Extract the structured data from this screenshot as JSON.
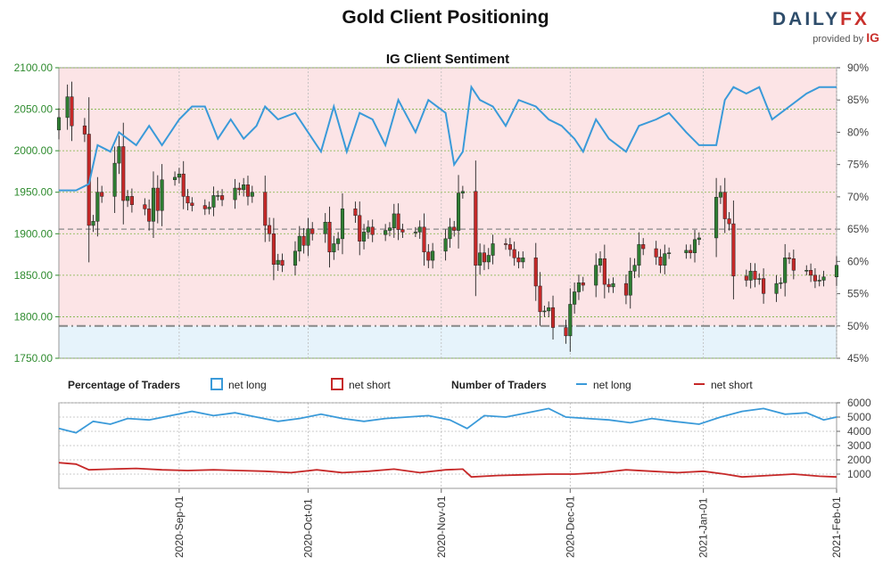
{
  "header": {
    "title": "Gold Client Positioning",
    "logo_text_a": "DAILY",
    "logo_text_b": "FX",
    "logo_sub": "provided by",
    "logo_brand": "IG"
  },
  "colors": {
    "net_long": "#3a9ad9",
    "net_short": "#c62828",
    "bull_candle": "#2e7d32",
    "bear_candle": "#c62828",
    "long_zone": "#e6f3fb",
    "short_zone": "#fce4e6",
    "price_axis": "#2e8b2e",
    "grid": "#7cb342"
  },
  "chart_data": [
    {
      "type": "candlestick",
      "title": "IG Client Sentiment",
      "y_left": {
        "label": "",
        "range": [
          1750,
          2100
        ],
        "ticks": [
          "1750.00",
          "1800.00",
          "1850.00",
          "1900.00",
          "1950.00",
          "2000.00",
          "2050.00",
          "2100.00"
        ]
      },
      "y_right": {
        "label": "",
        "range": [
          45,
          90
        ],
        "ticks": [
          "45%",
          "50%",
          "55%",
          "60%",
          "65%",
          "70%",
          "75%",
          "80%",
          "85%",
          "90%"
        ]
      },
      "x_range": [
        "2020-08-04",
        "2021-02-01"
      ],
      "x_ticks": [
        "2020-Sep-01",
        "2020-Oct-01",
        "2020-Nov-01",
        "2020-Dec-01",
        "2021-Jan-01",
        "2021-Feb-01"
      ],
      "reference_lines_pct": [
        50,
        65
      ],
      "close_price": [
        [
          "2020-08-04",
          2040
        ],
        [
          "2020-08-06",
          2065
        ],
        [
          "2020-08-07",
          2030
        ],
        [
          "2020-08-10",
          2020
        ],
        [
          "2020-08-11",
          1910
        ],
        [
          "2020-08-12",
          1915
        ],
        [
          "2020-08-13",
          1950
        ],
        [
          "2020-08-14",
          1945
        ],
        [
          "2020-08-17",
          1985
        ],
        [
          "2020-08-18",
          2005
        ],
        [
          "2020-08-19",
          1940
        ],
        [
          "2020-08-20",
          1945
        ],
        [
          "2020-08-21",
          1935
        ],
        [
          "2020-08-24",
          1930
        ],
        [
          "2020-08-25",
          1915
        ],
        [
          "2020-08-26",
          1955
        ],
        [
          "2020-08-27",
          1928
        ],
        [
          "2020-08-28",
          1965
        ],
        [
          "2020-08-31",
          1968
        ],
        [
          "2020-09-01",
          1972
        ],
        [
          "2020-09-02",
          1945
        ],
        [
          "2020-09-03",
          1937
        ],
        [
          "2020-09-04",
          1934
        ],
        [
          "2020-09-07",
          1930
        ],
        [
          "2020-09-08",
          1932
        ],
        [
          "2020-09-09",
          1946
        ],
        [
          "2020-09-10",
          1946
        ],
        [
          "2020-09-11",
          1941
        ],
        [
          "2020-09-14",
          1955
        ],
        [
          "2020-09-15",
          1953
        ],
        [
          "2020-09-16",
          1959
        ],
        [
          "2020-09-17",
          1945
        ],
        [
          "2020-09-18",
          1950
        ],
        [
          "2020-09-21",
          1910
        ],
        [
          "2020-09-22",
          1900
        ],
        [
          "2020-09-23",
          1863
        ],
        [
          "2020-09-24",
          1868
        ],
        [
          "2020-09-25",
          1862
        ],
        [
          "2020-09-28",
          1879
        ],
        [
          "2020-09-29",
          1897
        ],
        [
          "2020-09-30",
          1886
        ],
        [
          "2020-10-01",
          1906
        ],
        [
          "2020-10-02",
          1900
        ],
        [
          "2020-10-05",
          1914
        ],
        [
          "2020-10-06",
          1878
        ],
        [
          "2020-10-07",
          1888
        ],
        [
          "2020-10-08",
          1894
        ],
        [
          "2020-10-09",
          1930
        ],
        [
          "2020-10-12",
          1922
        ],
        [
          "2020-10-13",
          1891
        ],
        [
          "2020-10-14",
          1902
        ],
        [
          "2020-10-15",
          1908
        ],
        [
          "2020-10-16",
          1899
        ],
        [
          "2020-10-19",
          1904
        ],
        [
          "2020-10-20",
          1907
        ],
        [
          "2020-10-21",
          1924
        ],
        [
          "2020-10-22",
          1905
        ],
        [
          "2020-10-23",
          1902
        ],
        [
          "2020-10-26",
          1902
        ],
        [
          "2020-10-27",
          1908
        ],
        [
          "2020-10-28",
          1878
        ],
        [
          "2020-10-29",
          1868
        ],
        [
          "2020-10-30",
          1879
        ],
        [
          "2020-11-02",
          1894
        ],
        [
          "2020-11-03",
          1908
        ],
        [
          "2020-11-04",
          1904
        ],
        [
          "2020-11-05",
          1949
        ],
        [
          "2020-11-06",
          1951
        ],
        [
          "2020-11-09",
          1862
        ],
        [
          "2020-11-10",
          1877
        ],
        [
          "2020-11-11",
          1866
        ],
        [
          "2020-11-12",
          1874
        ],
        [
          "2020-11-13",
          1888
        ],
        [
          "2020-11-16",
          1887
        ],
        [
          "2020-11-17",
          1881
        ],
        [
          "2020-11-18",
          1871
        ],
        [
          "2020-11-19",
          1866
        ],
        [
          "2020-11-20",
          1871
        ],
        [
          "2020-11-23",
          1837
        ],
        [
          "2020-11-24",
          1806
        ],
        [
          "2020-11-25",
          1807
        ],
        [
          "2020-11-26",
          1811
        ],
        [
          "2020-11-27",
          1787
        ],
        [
          "2020-11-30",
          1777
        ],
        [
          "2020-12-01",
          1815
        ],
        [
          "2020-12-02",
          1830
        ],
        [
          "2020-12-03",
          1841
        ],
        [
          "2020-12-04",
          1838
        ],
        [
          "2020-12-07",
          1862
        ],
        [
          "2020-12-08",
          1870
        ],
        [
          "2020-12-09",
          1839
        ],
        [
          "2020-12-10",
          1836
        ],
        [
          "2020-12-11",
          1840
        ],
        [
          "2020-12-14",
          1826
        ],
        [
          "2020-12-15",
          1855
        ],
        [
          "2020-12-16",
          1862
        ],
        [
          "2020-12-17",
          1887
        ],
        [
          "2020-12-18",
          1882
        ],
        [
          "2020-12-21",
          1872
        ],
        [
          "2020-12-22",
          1862
        ],
        [
          "2020-12-23",
          1876
        ],
        [
          "2020-12-24",
          1877
        ],
        [
          "2020-12-28",
          1880
        ],
        [
          "2020-12-29",
          1877
        ],
        [
          "2020-12-30",
          1893
        ],
        [
          "2020-12-31",
          1895
        ],
        [
          "2021-01-04",
          1944
        ],
        [
          "2021-01-05",
          1950
        ],
        [
          "2021-01-06",
          1918
        ],
        [
          "2021-01-07",
          1912
        ],
        [
          "2021-01-08",
          1849
        ],
        [
          "2021-01-11",
          1844
        ],
        [
          "2021-01-12",
          1855
        ],
        [
          "2021-01-13",
          1845
        ],
        [
          "2021-01-14",
          1846
        ],
        [
          "2021-01-15",
          1828
        ],
        [
          "2021-01-18",
          1840
        ],
        [
          "2021-01-19",
          1841
        ],
        [
          "2021-01-20",
          1871
        ],
        [
          "2021-01-21",
          1870
        ],
        [
          "2021-01-22",
          1856
        ],
        [
          "2021-01-25",
          1856
        ],
        [
          "2021-01-26",
          1850
        ],
        [
          "2021-01-27",
          1843
        ],
        [
          "2021-01-28",
          1844
        ],
        [
          "2021-01-29",
          1848
        ],
        [
          "2021-02-01",
          1862
        ]
      ],
      "net_long_pct": [
        [
          "2020-08-04",
          71
        ],
        [
          "2020-08-08",
          71
        ],
        [
          "2020-08-11",
          72
        ],
        [
          "2020-08-13",
          78
        ],
        [
          "2020-08-16",
          77
        ],
        [
          "2020-08-18",
          80
        ],
        [
          "2020-08-22",
          78
        ],
        [
          "2020-08-25",
          81
        ],
        [
          "2020-08-28",
          78
        ],
        [
          "2020-09-01",
          82
        ],
        [
          "2020-09-04",
          84
        ],
        [
          "2020-09-07",
          84
        ],
        [
          "2020-09-10",
          79
        ],
        [
          "2020-09-13",
          82
        ],
        [
          "2020-09-16",
          79
        ],
        [
          "2020-09-19",
          81
        ],
        [
          "2020-09-21",
          84
        ],
        [
          "2020-09-24",
          82
        ],
        [
          "2020-09-28",
          83
        ],
        [
          "2020-10-01",
          80
        ],
        [
          "2020-10-04",
          77
        ],
        [
          "2020-10-07",
          84
        ],
        [
          "2020-10-10",
          77
        ],
        [
          "2020-10-13",
          83
        ],
        [
          "2020-10-16",
          82
        ],
        [
          "2020-10-19",
          78
        ],
        [
          "2020-10-22",
          85
        ],
        [
          "2020-10-26",
          80
        ],
        [
          "2020-10-29",
          85
        ],
        [
          "2020-11-02",
          83
        ],
        [
          "2020-11-04",
          75
        ],
        [
          "2020-11-06",
          77
        ],
        [
          "2020-11-08",
          87
        ],
        [
          "2020-11-10",
          85
        ],
        [
          "2020-11-13",
          84
        ],
        [
          "2020-11-16",
          81
        ],
        [
          "2020-11-19",
          85
        ],
        [
          "2020-11-23",
          84
        ],
        [
          "2020-11-26",
          82
        ],
        [
          "2020-11-29",
          81
        ],
        [
          "2020-12-02",
          79
        ],
        [
          "2020-12-04",
          77
        ],
        [
          "2020-12-07",
          82
        ],
        [
          "2020-12-10",
          79
        ],
        [
          "2020-12-14",
          77
        ],
        [
          "2020-12-17",
          81
        ],
        [
          "2020-12-21",
          82
        ],
        [
          "2020-12-24",
          83
        ],
        [
          "2020-12-28",
          80
        ],
        [
          "2020-12-31",
          78
        ],
        [
          "2021-01-04",
          78
        ],
        [
          "2021-01-06",
          85
        ],
        [
          "2021-01-08",
          87
        ],
        [
          "2021-01-11",
          86
        ],
        [
          "2021-01-14",
          87
        ],
        [
          "2021-01-17",
          82
        ],
        [
          "2021-01-21",
          84
        ],
        [
          "2021-01-25",
          86
        ],
        [
          "2021-01-28",
          87
        ],
        [
          "2021-02-01",
          87
        ]
      ]
    },
    {
      "type": "line",
      "title": "Number of Traders",
      "y_range": [
        0,
        6000
      ],
      "y_ticks": [
        "1000",
        "2000",
        "3000",
        "4000",
        "5000",
        "6000"
      ],
      "legend_pct": {
        "label": "Percentage of Traders",
        "long": "net long",
        "short": "net short"
      },
      "legend_num": {
        "label": "Number of Traders",
        "long": "net long",
        "short": "net short"
      },
      "series": [
        {
          "name": "net long",
          "points": [
            [
              "2020-08-04",
              4200
            ],
            [
              "2020-08-08",
              3900
            ],
            [
              "2020-08-12",
              4700
            ],
            [
              "2020-08-16",
              4500
            ],
            [
              "2020-08-20",
              4900
            ],
            [
              "2020-08-25",
              4800
            ],
            [
              "2020-08-30",
              5100
            ],
            [
              "2020-09-04",
              5400
            ],
            [
              "2020-09-09",
              5100
            ],
            [
              "2020-09-14",
              5300
            ],
            [
              "2020-09-19",
              5000
            ],
            [
              "2020-09-24",
              4700
            ],
            [
              "2020-09-29",
              4900
            ],
            [
              "2020-10-04",
              5200
            ],
            [
              "2020-10-09",
              4900
            ],
            [
              "2020-10-14",
              4700
            ],
            [
              "2020-10-19",
              4900
            ],
            [
              "2020-10-24",
              5000
            ],
            [
              "2020-10-29",
              5100
            ],
            [
              "2020-11-03",
              4800
            ],
            [
              "2020-11-07",
              4200
            ],
            [
              "2020-11-11",
              5100
            ],
            [
              "2020-11-16",
              5000
            ],
            [
              "2020-11-21",
              5300
            ],
            [
              "2020-11-26",
              5600
            ],
            [
              "2020-11-30",
              5000
            ],
            [
              "2020-12-05",
              4900
            ],
            [
              "2020-12-10",
              4800
            ],
            [
              "2020-12-15",
              4600
            ],
            [
              "2020-12-20",
              4900
            ],
            [
              "2020-12-25",
              4700
            ],
            [
              "2020-12-31",
              4500
            ],
            [
              "2021-01-05",
              5000
            ],
            [
              "2021-01-10",
              5400
            ],
            [
              "2021-01-15",
              5600
            ],
            [
              "2021-01-20",
              5200
            ],
            [
              "2021-01-25",
              5300
            ],
            [
              "2021-01-29",
              4800
            ],
            [
              "2021-02-01",
              5000
            ]
          ]
        },
        {
          "name": "net short",
          "points": [
            [
              "2020-08-04",
              1800
            ],
            [
              "2020-08-08",
              1700
            ],
            [
              "2020-08-11",
              1300
            ],
            [
              "2020-08-16",
              1350
            ],
            [
              "2020-08-22",
              1400
            ],
            [
              "2020-08-28",
              1300
            ],
            [
              "2020-09-03",
              1250
            ],
            [
              "2020-09-09",
              1300
            ],
            [
              "2020-09-15",
              1250
            ],
            [
              "2020-09-21",
              1200
            ],
            [
              "2020-09-27",
              1100
            ],
            [
              "2020-10-03",
              1300
            ],
            [
              "2020-10-09",
              1100
            ],
            [
              "2020-10-15",
              1200
            ],
            [
              "2020-10-21",
              1350
            ],
            [
              "2020-10-27",
              1100
            ],
            [
              "2020-11-02",
              1300
            ],
            [
              "2020-11-06",
              1350
            ],
            [
              "2020-11-08",
              800
            ],
            [
              "2020-11-14",
              900
            ],
            [
              "2020-11-20",
              950
            ],
            [
              "2020-11-26",
              1000
            ],
            [
              "2020-12-02",
              1000
            ],
            [
              "2020-12-08",
              1100
            ],
            [
              "2020-12-14",
              1300
            ],
            [
              "2020-12-20",
              1200
            ],
            [
              "2020-12-26",
              1100
            ],
            [
              "2021-01-01",
              1200
            ],
            [
              "2021-01-06",
              1000
            ],
            [
              "2021-01-10",
              800
            ],
            [
              "2021-01-16",
              900
            ],
            [
              "2021-01-22",
              1000
            ],
            [
              "2021-01-28",
              850
            ],
            [
              "2021-02-01",
              800
            ]
          ]
        }
      ]
    }
  ]
}
